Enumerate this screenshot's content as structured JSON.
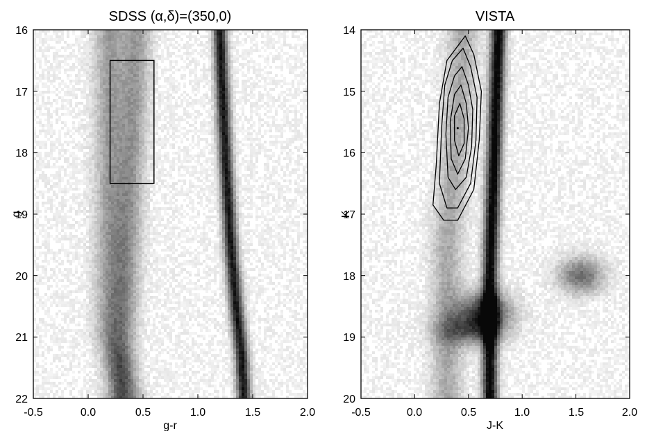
{
  "chart_data": [
    {
      "type": "heatmap",
      "title": "SDSS (α,δ)=(350,0)",
      "xlabel": "g-r",
      "ylabel": "g",
      "xlim": [
        -0.5,
        2.0
      ],
      "ylim": [
        16,
        22
      ],
      "y_inverted": true,
      "xticks": [
        "-0.5",
        "0.0",
        "0.5",
        "1.0",
        "1.5",
        "2.0"
      ],
      "yticks": [
        "16",
        "17",
        "18",
        "19",
        "20",
        "21",
        "22"
      ],
      "colormap": "grayscale (darker = higher density)",
      "density_features": [
        {
          "kind": "band",
          "points": [
            [
              0.45,
              16.0
            ],
            [
              0.4,
              18.0
            ],
            [
              0.35,
              20.0
            ],
            [
              0.3,
              21.5
            ],
            [
              0.3,
              22.0
            ]
          ],
          "width": 0.18,
          "strength": 0.35
        },
        {
          "kind": "band",
          "points": [
            [
              1.2,
              16.0
            ],
            [
              1.25,
              18.0
            ],
            [
              1.3,
              19.5
            ],
            [
              1.35,
              20.5
            ],
            [
              1.4,
              21.3
            ],
            [
              1.42,
              22.0
            ]
          ],
          "width": 0.09,
          "strength": 0.9
        },
        {
          "kind": "band",
          "points": [
            [
              0.2,
              21.0
            ],
            [
              0.3,
              21.6
            ],
            [
              0.35,
              22.0
            ]
          ],
          "width": 0.2,
          "strength": 0.35
        }
      ],
      "selection_box": {
        "x": [
          0.2,
          0.6
        ],
        "y": [
          16.5,
          18.5
        ]
      }
    },
    {
      "type": "heatmap",
      "title": "VISTA",
      "xlabel": "J-K",
      "ylabel": "K",
      "xlim": [
        -0.5,
        2.0
      ],
      "ylim": [
        14,
        20
      ],
      "y_inverted": true,
      "xticks": [
        "-0.5",
        "0.0",
        "0.5",
        "1.0",
        "1.5",
        "2.0"
      ],
      "yticks": [
        "14",
        "15",
        "16",
        "17",
        "18",
        "19",
        "20"
      ],
      "colormap": "grayscale (darker = higher density)",
      "density_features": [
        {
          "kind": "band",
          "points": [
            [
              0.78,
              14.0
            ],
            [
              0.76,
              15.0
            ],
            [
              0.74,
              16.0
            ],
            [
              0.72,
              17.0
            ],
            [
              0.7,
              18.0
            ],
            [
              0.7,
              18.5
            ]
          ],
          "width": 0.1,
          "strength": 1.0
        },
        {
          "kind": "blob",
          "center": [
            0.65,
            18.6
          ],
          "radius": [
            0.3,
            0.4
          ],
          "strength": 0.75
        },
        {
          "kind": "band",
          "points": [
            [
              0.45,
              14.0
            ],
            [
              0.4,
              15.5
            ],
            [
              0.35,
              16.5
            ],
            [
              0.3,
              17.5
            ]
          ],
          "width": 0.2,
          "strength": 0.3
        },
        {
          "kind": "blob",
          "center": [
            1.55,
            18.0
          ],
          "radius": [
            0.25,
            0.35
          ],
          "strength": 0.55
        },
        {
          "kind": "blob",
          "center": [
            0.5,
            18.9
          ],
          "radius": [
            0.35,
            0.3
          ],
          "strength": 0.45
        }
      ],
      "contour_center": [
        0.4,
        15.6
      ],
      "contours": [
        {
          "level": 1,
          "points": [
            [
              0.47,
              14.1
            ],
            [
              0.55,
              14.4
            ],
            [
              0.62,
              15.0
            ],
            [
              0.6,
              15.8
            ],
            [
              0.55,
              16.6
            ],
            [
              0.4,
              17.1
            ],
            [
              0.27,
              17.1
            ],
            [
              0.17,
              16.85
            ],
            [
              0.2,
              16.2
            ],
            [
              0.23,
              15.2
            ],
            [
              0.3,
              14.5
            ]
          ]
        },
        {
          "level": 2,
          "points": [
            [
              0.45,
              14.3
            ],
            [
              0.52,
              14.6
            ],
            [
              0.58,
              15.1
            ],
            [
              0.57,
              15.8
            ],
            [
              0.52,
              16.5
            ],
            [
              0.4,
              16.9
            ],
            [
              0.3,
              16.9
            ],
            [
              0.23,
              16.5
            ],
            [
              0.25,
              15.6
            ],
            [
              0.28,
              14.9
            ],
            [
              0.35,
              14.5
            ]
          ]
        },
        {
          "level": 3,
          "points": [
            [
              0.44,
              14.6
            ],
            [
              0.5,
              14.9
            ],
            [
              0.54,
              15.3
            ],
            [
              0.53,
              15.9
            ],
            [
              0.48,
              16.4
            ],
            [
              0.38,
              16.6
            ],
            [
              0.31,
              16.4
            ],
            [
              0.29,
              15.7
            ],
            [
              0.31,
              15.1
            ],
            [
              0.37,
              14.75
            ]
          ]
        },
        {
          "level": 4,
          "points": [
            [
              0.43,
              14.9
            ],
            [
              0.48,
              15.2
            ],
            [
              0.5,
              15.6
            ],
            [
              0.47,
              16.1
            ],
            [
              0.4,
              16.35
            ],
            [
              0.34,
              16.1
            ],
            [
              0.33,
              15.5
            ],
            [
              0.37,
              15.05
            ]
          ]
        },
        {
          "level": 5,
          "points": [
            [
              0.42,
              15.2
            ],
            [
              0.46,
              15.45
            ],
            [
              0.46,
              15.85
            ],
            [
              0.41,
              16.05
            ],
            [
              0.37,
              15.8
            ],
            [
              0.37,
              15.4
            ]
          ]
        }
      ]
    }
  ]
}
